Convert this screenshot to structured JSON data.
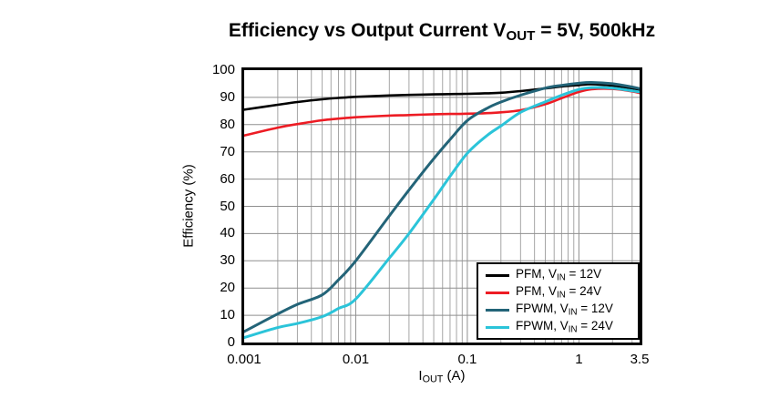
{
  "title": {
    "prefix": "Efficiency vs Output Current V",
    "sub": "OUT",
    "suffix": " = 5V, 500kHz"
  },
  "axes": {
    "y_label": "Efficiency (%)",
    "x_label_prefix": "I",
    "x_label_sub": "OUT",
    "x_label_suffix": " (A)",
    "x_ticks": [
      {
        "value": 0.001,
        "label": "0.001"
      },
      {
        "value": 0.01,
        "label": "0.01"
      },
      {
        "value": 0.1,
        "label": "0.1"
      },
      {
        "value": 1,
        "label": "1"
      },
      {
        "value": 3.5,
        "label": "3.5"
      }
    ],
    "y_ticks": [
      {
        "value": 100,
        "label": "100"
      },
      {
        "value": 90,
        "label": "90"
      },
      {
        "value": 80,
        "label": "80"
      },
      {
        "value": 70,
        "label": "70"
      },
      {
        "value": 60,
        "label": "60"
      },
      {
        "value": 50,
        "label": "50"
      },
      {
        "value": 40,
        "label": "40"
      },
      {
        "value": 30,
        "label": "30"
      },
      {
        "value": 20,
        "label": "20"
      },
      {
        "value": 10,
        "label": "10"
      },
      {
        "value": 0,
        "label": "0"
      }
    ]
  },
  "legend": {
    "items": [
      {
        "prefix": "PFM, V",
        "sub": "IN",
        "suffix": " = 12V",
        "color": "#000000"
      },
      {
        "prefix": "PFM, V",
        "sub": "IN",
        "suffix": " = 24V",
        "color": "#ed1c24"
      },
      {
        "prefix": "FPWM, V",
        "sub": "IN",
        "suffix": " = 12V",
        "color": "#236478"
      },
      {
        "prefix": "FPWM, V",
        "sub": "IN",
        "suffix": " = 24V",
        "color": "#2bc4d9"
      }
    ]
  },
  "colors": {
    "major_grid": "#8f8f8f",
    "minor_grid": "#a6a6a6",
    "frame": "#000000"
  },
  "chart_data": {
    "type": "line",
    "title": "Efficiency vs Output Current VOUT = 5V, 500kHz",
    "xlabel": "IOUT (A)",
    "ylabel": "Efficiency (%)",
    "x_scale": "log",
    "xlim": [
      0.001,
      3.5
    ],
    "ylim": [
      0,
      100
    ],
    "grid": true,
    "legend_position": "bottom-right",
    "series": [
      {
        "name": "PFM, VIN = 12V",
        "color": "#000000",
        "x": [
          0.001,
          0.002,
          0.003,
          0.005,
          0.007,
          0.01,
          0.02,
          0.03,
          0.05,
          0.07,
          0.1,
          0.15,
          0.2,
          0.3,
          0.5,
          0.7,
          1,
          1.3,
          2,
          3,
          3.5
        ],
        "y": [
          85.5,
          87.3,
          88.3,
          89.3,
          89.8,
          90.2,
          90.7,
          90.9,
          91.1,
          91.2,
          91.3,
          91.5,
          91.7,
          92.3,
          93.3,
          94.0,
          94.5,
          94.8,
          94.3,
          93.3,
          92.8
        ]
      },
      {
        "name": "PFM, VIN = 24V",
        "color": "#ed1c24",
        "x": [
          0.001,
          0.002,
          0.003,
          0.005,
          0.007,
          0.01,
          0.02,
          0.03,
          0.05,
          0.07,
          0.1,
          0.15,
          0.2,
          0.3,
          0.5,
          0.7,
          1,
          1.3,
          2,
          3,
          3.5
        ],
        "y": [
          76.0,
          78.9,
          80.2,
          81.6,
          82.2,
          82.7,
          83.3,
          83.5,
          83.8,
          83.9,
          84.0,
          84.2,
          84.5,
          85.3,
          87.5,
          89.7,
          92.0,
          93.0,
          93.1,
          92.2,
          91.6
        ]
      },
      {
        "name": "FPWM, VIN = 12V",
        "color": "#236478",
        "x": [
          0.001,
          0.002,
          0.003,
          0.005,
          0.007,
          0.01,
          0.02,
          0.03,
          0.05,
          0.07,
          0.1,
          0.15,
          0.2,
          0.3,
          0.5,
          0.7,
          1,
          1.3,
          2,
          3,
          3.5
        ],
        "y": [
          4.0,
          10.5,
          14.0,
          17.5,
          23.0,
          30.0,
          46.5,
          56.0,
          67.5,
          74.5,
          81.5,
          86.0,
          88.3,
          90.8,
          93.4,
          94.4,
          95.2,
          95.5,
          95.0,
          93.8,
          93.2
        ]
      },
      {
        "name": "FPWM, VIN = 24V",
        "color": "#2bc4d9",
        "x": [
          0.001,
          0.002,
          0.003,
          0.005,
          0.007,
          0.01,
          0.02,
          0.03,
          0.05,
          0.07,
          0.1,
          0.15,
          0.2,
          0.3,
          0.5,
          0.7,
          1,
          1.3,
          2,
          3,
          3.5
        ],
        "y": [
          1.8,
          5.5,
          7.0,
          9.5,
          12.5,
          16.0,
          31.0,
          40.0,
          52.5,
          61.0,
          69.5,
          76.0,
          79.5,
          84.5,
          88.4,
          90.8,
          92.9,
          93.6,
          93.4,
          92.4,
          92.0
        ]
      }
    ]
  }
}
